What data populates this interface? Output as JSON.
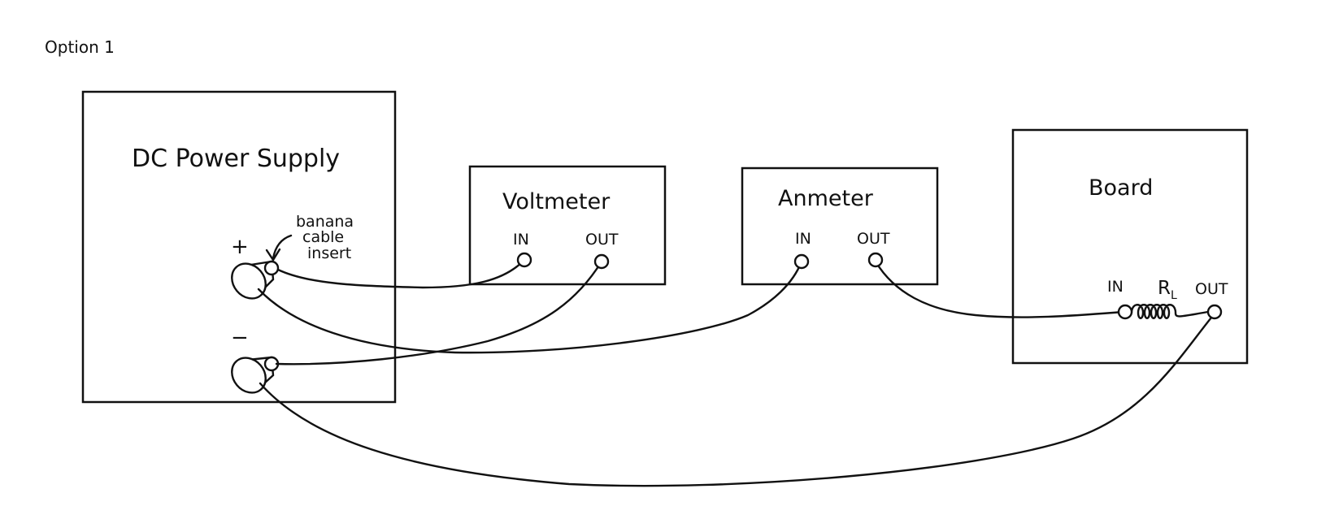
{
  "header": {
    "option": "Option 1"
  },
  "power_supply": {
    "title": "DC Power Supply",
    "plus": "+",
    "minus": "−",
    "note_lines": [
      "banana",
      "cable",
      "insert"
    ]
  },
  "voltmeter": {
    "title": "Voltmeter",
    "in": "IN",
    "out": "OUT"
  },
  "ammeter": {
    "title": "Anmeter",
    "in": "IN",
    "out": "OUT"
  },
  "board": {
    "title": "Board",
    "in": "IN",
    "out": "OUT",
    "resistor": "R",
    "resistor_sub": "L"
  },
  "colors": {
    "ink": "#111111",
    "paper": "#ffffff"
  }
}
